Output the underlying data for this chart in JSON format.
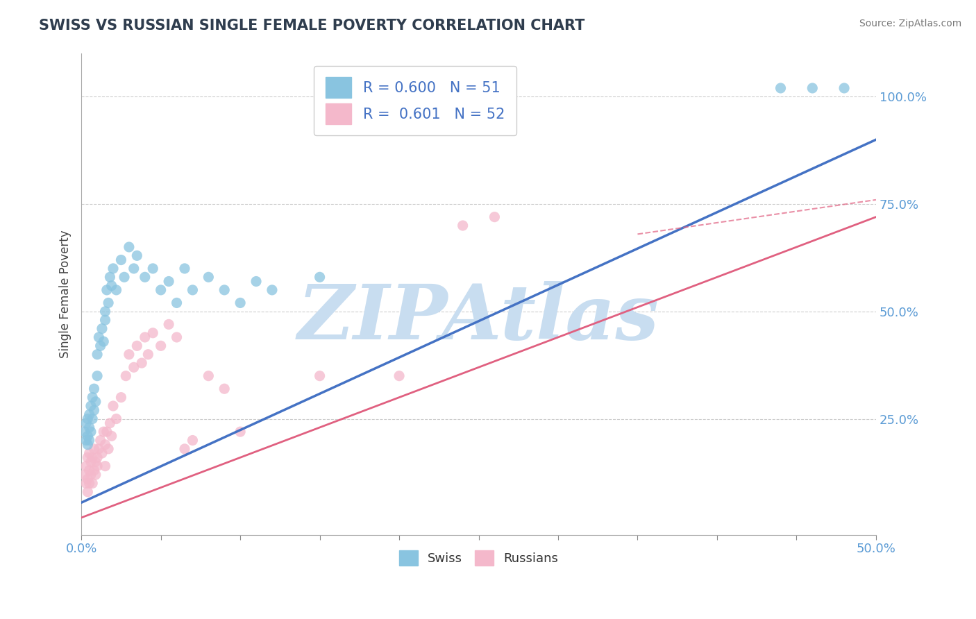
{
  "title": "SWISS VS RUSSIAN SINGLE FEMALE POVERTY CORRELATION CHART",
  "source": "Source: ZipAtlas.com",
  "ylabel": "Single Female Poverty",
  "xlim": [
    0.0,
    0.5
  ],
  "ylim": [
    -0.02,
    1.1
  ],
  "x_ticks": [
    0.0,
    0.05,
    0.1,
    0.15,
    0.2,
    0.25,
    0.3,
    0.35,
    0.4,
    0.45,
    0.5
  ],
  "x_tick_labels": [
    "0.0%",
    "",
    "",
    "",
    "",
    "",
    "",
    "",
    "",
    "",
    "50.0%"
  ],
  "y_ticks": [
    0.0,
    0.25,
    0.5,
    0.75,
    1.0
  ],
  "y_tick_labels": [
    "",
    "25.0%",
    "50.0%",
    "75.0%",
    "100.0%"
  ],
  "swiss_color": "#89c4e0",
  "russian_color": "#f4b8cb",
  "swiss_R": 0.6,
  "swiss_N": 51,
  "russian_R": 0.601,
  "russian_N": 52,
  "watermark": "ZIPAtlas",
  "watermark_color": "#c8ddf0",
  "background_color": "#ffffff",
  "swiss_color_line": "#4472c4",
  "russian_color_line": "#e06080",
  "swiss_scatter": [
    [
      0.002,
      0.22
    ],
    [
      0.003,
      0.2
    ],
    [
      0.003,
      0.24
    ],
    [
      0.004,
      0.21
    ],
    [
      0.004,
      0.25
    ],
    [
      0.004,
      0.19
    ],
    [
      0.005,
      0.23
    ],
    [
      0.005,
      0.26
    ],
    [
      0.005,
      0.2
    ],
    [
      0.006,
      0.22
    ],
    [
      0.006,
      0.28
    ],
    [
      0.007,
      0.25
    ],
    [
      0.007,
      0.3
    ],
    [
      0.008,
      0.27
    ],
    [
      0.008,
      0.32
    ],
    [
      0.009,
      0.29
    ],
    [
      0.01,
      0.4
    ],
    [
      0.01,
      0.35
    ],
    [
      0.011,
      0.44
    ],
    [
      0.012,
      0.42
    ],
    [
      0.013,
      0.46
    ],
    [
      0.014,
      0.43
    ],
    [
      0.015,
      0.5
    ],
    [
      0.015,
      0.48
    ],
    [
      0.016,
      0.55
    ],
    [
      0.017,
      0.52
    ],
    [
      0.018,
      0.58
    ],
    [
      0.019,
      0.56
    ],
    [
      0.02,
      0.6
    ],
    [
      0.022,
      0.55
    ],
    [
      0.025,
      0.62
    ],
    [
      0.027,
      0.58
    ],
    [
      0.03,
      0.65
    ],
    [
      0.033,
      0.6
    ],
    [
      0.035,
      0.63
    ],
    [
      0.04,
      0.58
    ],
    [
      0.045,
      0.6
    ],
    [
      0.05,
      0.55
    ],
    [
      0.055,
      0.57
    ],
    [
      0.06,
      0.52
    ],
    [
      0.065,
      0.6
    ],
    [
      0.07,
      0.55
    ],
    [
      0.08,
      0.58
    ],
    [
      0.09,
      0.55
    ],
    [
      0.1,
      0.52
    ],
    [
      0.11,
      0.57
    ],
    [
      0.12,
      0.55
    ],
    [
      0.15,
      0.58
    ],
    [
      0.44,
      1.02
    ],
    [
      0.46,
      1.02
    ],
    [
      0.48,
      1.02
    ]
  ],
  "russian_scatter": [
    [
      0.002,
      0.12
    ],
    [
      0.003,
      0.1
    ],
    [
      0.003,
      0.14
    ],
    [
      0.004,
      0.11
    ],
    [
      0.004,
      0.16
    ],
    [
      0.004,
      0.08
    ],
    [
      0.005,
      0.13
    ],
    [
      0.005,
      0.1
    ],
    [
      0.005,
      0.17
    ],
    [
      0.006,
      0.12
    ],
    [
      0.006,
      0.15
    ],
    [
      0.007,
      0.1
    ],
    [
      0.007,
      0.16
    ],
    [
      0.008,
      0.13
    ],
    [
      0.008,
      0.18
    ],
    [
      0.009,
      0.15
    ],
    [
      0.009,
      0.12
    ],
    [
      0.01,
      0.16
    ],
    [
      0.01,
      0.14
    ],
    [
      0.011,
      0.18
    ],
    [
      0.012,
      0.2
    ],
    [
      0.013,
      0.17
    ],
    [
      0.014,
      0.22
    ],
    [
      0.015,
      0.19
    ],
    [
      0.015,
      0.14
    ],
    [
      0.016,
      0.22
    ],
    [
      0.017,
      0.18
    ],
    [
      0.018,
      0.24
    ],
    [
      0.019,
      0.21
    ],
    [
      0.02,
      0.28
    ],
    [
      0.022,
      0.25
    ],
    [
      0.025,
      0.3
    ],
    [
      0.028,
      0.35
    ],
    [
      0.03,
      0.4
    ],
    [
      0.033,
      0.37
    ],
    [
      0.035,
      0.42
    ],
    [
      0.038,
      0.38
    ],
    [
      0.04,
      0.44
    ],
    [
      0.042,
      0.4
    ],
    [
      0.045,
      0.45
    ],
    [
      0.05,
      0.42
    ],
    [
      0.055,
      0.47
    ],
    [
      0.06,
      0.44
    ],
    [
      0.065,
      0.18
    ],
    [
      0.07,
      0.2
    ],
    [
      0.08,
      0.35
    ],
    [
      0.09,
      0.32
    ],
    [
      0.1,
      0.22
    ],
    [
      0.15,
      0.35
    ],
    [
      0.2,
      0.35
    ],
    [
      0.24,
      0.7
    ],
    [
      0.26,
      0.72
    ]
  ],
  "swiss_line": [
    0.0,
    0.055,
    0.5,
    0.9
  ],
  "russian_line": [
    0.0,
    0.02,
    0.5,
    0.72
  ],
  "russian_dashed_line": [
    0.35,
    0.68,
    0.5,
    0.76
  ]
}
